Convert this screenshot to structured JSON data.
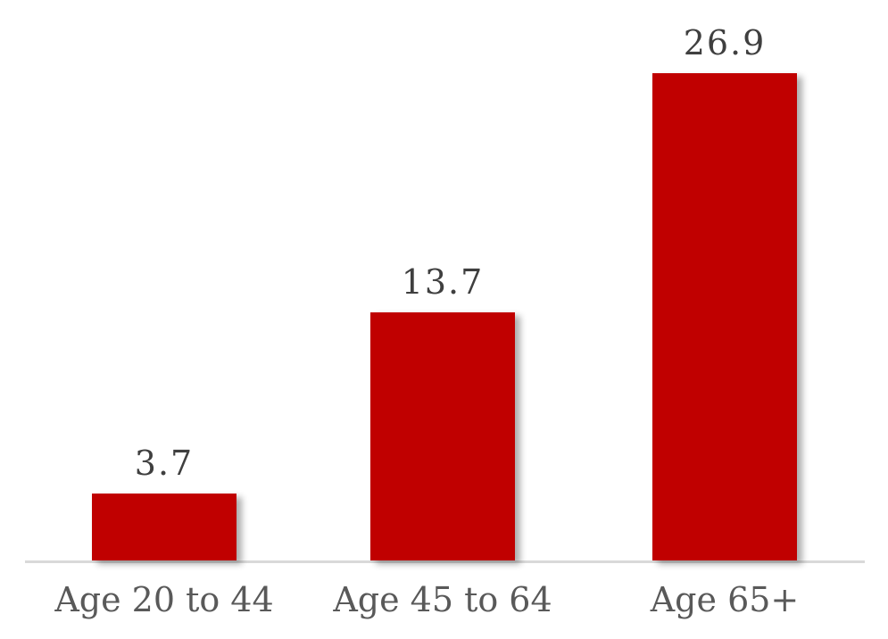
{
  "chart_data": {
    "type": "bar",
    "categories": [
      "Age 20 to 44",
      "Age 45 to 64",
      "Age 65+"
    ],
    "values": [
      3.7,
      13.7,
      26.9
    ],
    "value_labels": [
      "3.7",
      "13.7",
      "26.9"
    ],
    "title": "",
    "xlabel": "",
    "ylabel": "",
    "ylim": [
      0,
      30
    ],
    "grid": false,
    "legend": false,
    "y_axis_visible": false,
    "colors": {
      "bar_fill": "#c00000",
      "axis_line": "#d9d9d9",
      "value_label_text": "#3f3f3f",
      "category_label_text": "#595959",
      "background": "#ffffff"
    }
  }
}
